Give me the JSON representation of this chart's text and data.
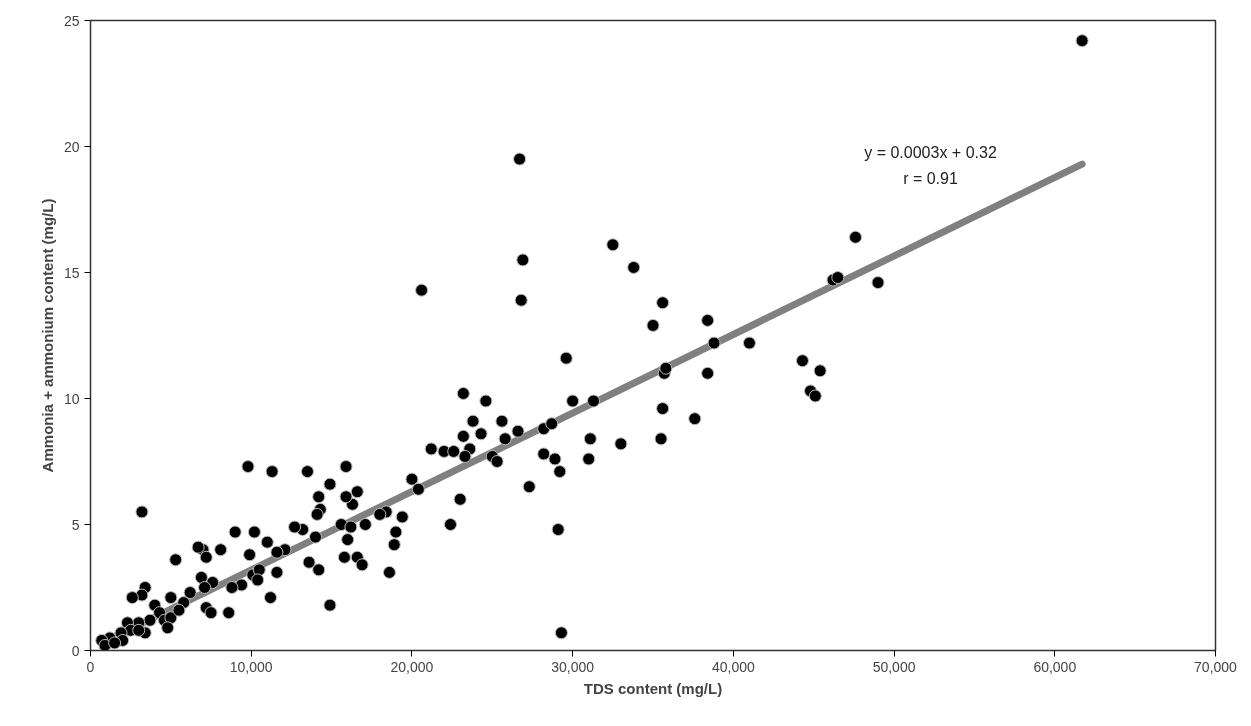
{
  "chart_data": {
    "type": "scatter",
    "xlabel": "TDS content (mg/L)",
    "ylabel": "Ammonia + ammonium content (mg/L)",
    "xlim": [
      0,
      70000
    ],
    "ylim": [
      0,
      25
    ],
    "xticks": [
      0,
      {
        "value": 10000,
        "label": "10,000"
      },
      {
        "value": 20000,
        "label": "20,000"
      },
      {
        "value": 30000,
        "label": "30,000"
      },
      {
        "value": 40000,
        "label": "40,000"
      },
      {
        "value": 50000,
        "label": "50,000"
      },
      {
        "value": 60000,
        "label": "60,000"
      },
      {
        "value": 70000,
        "label": "70,000"
      }
    ],
    "yticks": [
      0,
      5,
      10,
      15,
      20,
      25
    ],
    "grid": false,
    "marker": "circle",
    "annotations": [
      "y = 0.0003x + 0.32",
      "r = 0.91"
    ],
    "series": [
      {
        "type": "line",
        "color": "#808080",
        "marker": "none",
        "x": [
          700,
          61700
        ],
        "values": [
          0.3,
          19.3
        ]
      },
      {
        "color": "#000000",
        "x": [
          61700,
          26700,
          26900,
          26800,
          32500,
          33800,
          47600,
          46200,
          46500,
          49000,
          20600,
          35000,
          35600,
          38400,
          38800,
          41000,
          38400,
          35700,
          35800,
          35600,
          35500,
          29600,
          31300,
          30000,
          44300,
          45400,
          44800,
          45100,
          37600,
          31100,
          31000,
          33000,
          23200,
          24600,
          23800,
          25600,
          23200,
          24300,
          21200,
          22000,
          22600,
          23600,
          23300,
          25800,
          25000,
          25300,
          26600,
          28200,
          28700,
          28200,
          28900,
          29200,
          27300,
          23000,
          22400,
          29100,
          29300,
          20000,
          20400,
          19400,
          19000,
          18900,
          18400,
          18000,
          17100,
          18600,
          16600,
          16300,
          15900,
          15900,
          15600,
          16200,
          16000,
          15800,
          16600,
          16900,
          14900,
          14900,
          14200,
          14300,
          14100,
          14000,
          13500,
          13200,
          12700,
          13600,
          14200,
          11300,
          12100,
          11600,
          11000,
          11600,
          11200,
          9800,
          10200,
          9000,
          9900,
          10100,
          10500,
          10400,
          9400,
          8800,
          8600,
          8100,
          7600,
          7000,
          7200,
          6700,
          6900,
          7100,
          7200,
          7500,
          6200,
          5300,
          5800,
          5000,
          3200,
          3400,
          3200,
          2600,
          4000,
          4300,
          4600,
          3700,
          3000,
          2300,
          2500,
          1900,
          2000,
          1200,
          700,
          900,
          5000,
          5500,
          4800,
          3400,
          3000,
          1500
        ],
        "values": [
          24.2,
          19.5,
          15.5,
          13.9,
          16.1,
          15.2,
          16.4,
          14.7,
          14.8,
          14.6,
          14.3,
          12.9,
          13.8,
          13.1,
          12.2,
          12.2,
          11.0,
          11.0,
          11.2,
          9.6,
          8.4,
          11.6,
          9.9,
          9.9,
          11.5,
          11.1,
          10.3,
          10.1,
          9.2,
          8.4,
          7.6,
          8.2,
          10.2,
          9.9,
          9.1,
          9.1,
          8.5,
          8.6,
          8.0,
          7.9,
          7.9,
          8.0,
          7.7,
          8.4,
          7.7,
          7.5,
          8.7,
          8.8,
          9.0,
          7.8,
          7.6,
          7.1,
          6.5,
          6.0,
          5.0,
          4.8,
          0.7,
          6.8,
          6.4,
          5.3,
          4.7,
          4.2,
          5.5,
          5.4,
          5.0,
          3.1,
          6.3,
          5.8,
          7.3,
          6.1,
          5.0,
          4.9,
          4.4,
          3.7,
          3.7,
          3.4,
          1.8,
          6.6,
          6.1,
          5.6,
          5.4,
          4.5,
          7.1,
          4.8,
          4.9,
          3.5,
          3.2,
          7.1,
          4.0,
          3.9,
          4.3,
          3.1,
          2.1,
          7.3,
          4.7,
          4.7,
          3.8,
          3.0,
          3.2,
          2.8,
          2.6,
          2.5,
          1.5,
          4.0,
          2.7,
          4.0,
          3.7,
          4.1,
          2.9,
          2.5,
          1.7,
          1.5,
          2.3,
          3.6,
          1.9,
          2.1,
          5.5,
          2.5,
          2.2,
          2.1,
          1.8,
          1.5,
          1.2,
          1.2,
          1.1,
          1.1,
          0.8,
          0.7,
          0.4,
          0.5,
          0.4,
          0.2,
          1.3,
          1.6,
          0.9,
          0.7,
          0.8,
          0.3
        ]
      }
    ]
  }
}
